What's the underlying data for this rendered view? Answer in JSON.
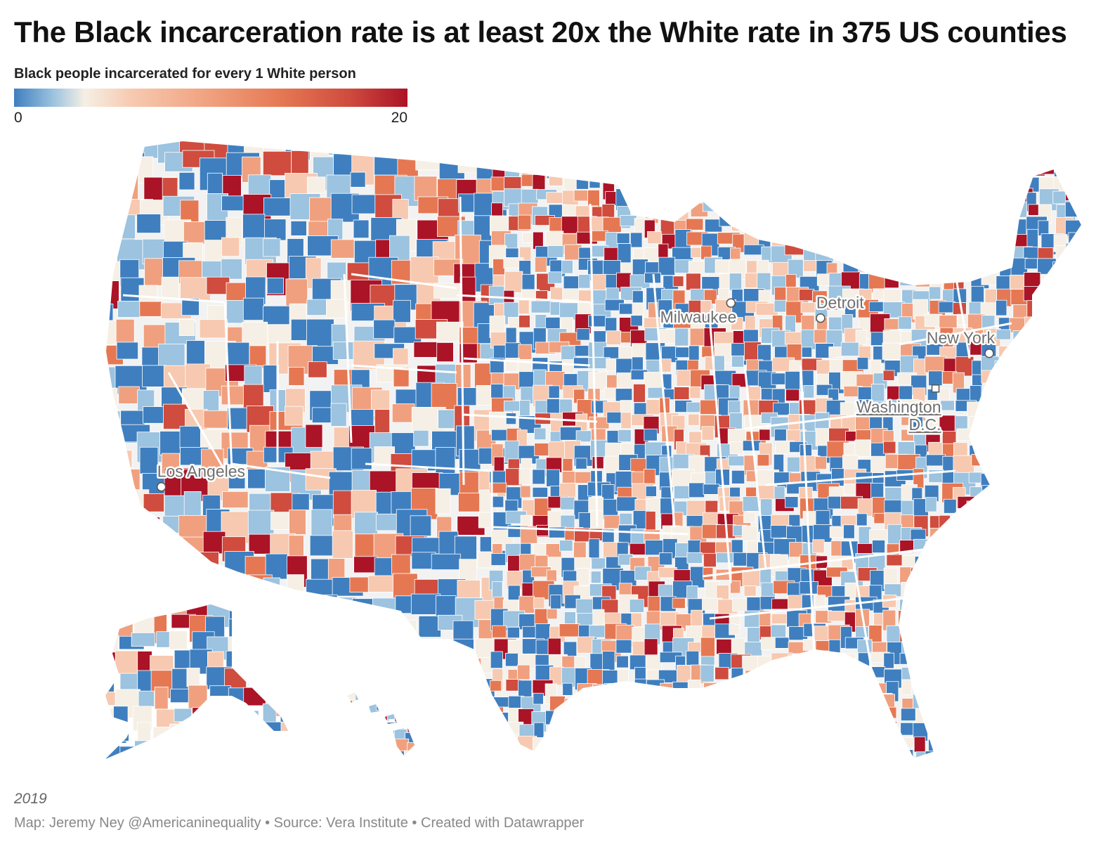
{
  "title": "The Black incarceration rate is at least 20x the White rate in 375 US counties",
  "legend": {
    "label": "Black people incarcerated for every 1 White person",
    "min": "0",
    "max": "20",
    "colors": [
      "#3f7fbf",
      "#9cc3df",
      "#f6efe5",
      "#f7c9b0",
      "#f0a07e",
      "#e57853",
      "#cf4c3e",
      "#ab1327"
    ]
  },
  "cities": [
    {
      "name": "Los Angeles",
      "lon": -118.24,
      "lat": 34.05,
      "marker": "circle"
    },
    {
      "name": "Milwaukee",
      "lon": -87.91,
      "lat": 43.04,
      "marker": "circle"
    },
    {
      "name": "Detroit",
      "lon": -83.05,
      "lat": 42.33,
      "marker": "circle"
    },
    {
      "name": "New York",
      "lon": -74.0,
      "lat": 40.71,
      "marker": "circle"
    },
    {
      "name": "Washington D.C.",
      "lon": -77.04,
      "lat": 38.9,
      "marker": "square"
    }
  ],
  "note": "2019",
  "source": "Map: Jeremy Ney @Americaninequality • Source: Vera Institute • Created with Datawrapper"
}
